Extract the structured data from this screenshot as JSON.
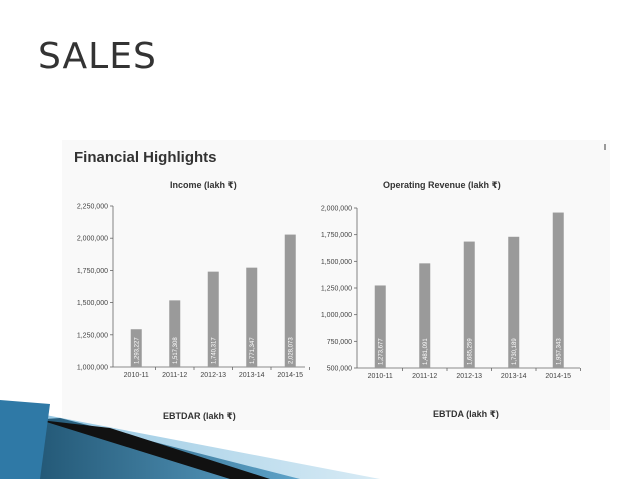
{
  "slide": {
    "title": "SALES"
  },
  "figure": {
    "heading": "Financial Highlights"
  },
  "chart_data": [
    {
      "type": "bar",
      "title": "Income (lakh ₹)",
      "categories": [
        "2010-11",
        "2011-12",
        "2012-13",
        "2013-14",
        "2014-15"
      ],
      "values": [
        1293227,
        1517308,
        1740317,
        1771347,
        2028073
      ],
      "value_labels": [
        "1,293,227",
        "1,517,308",
        "1,740,317",
        "1,771,347",
        "2,028,073"
      ],
      "ylim": [
        1000000,
        2250000
      ],
      "yticks": [
        "1,000,000",
        "1,250,000",
        "1,500,000",
        "1,750,000",
        "2,000,000",
        "2,250,000"
      ],
      "ytick_values": [
        1000000,
        1250000,
        1500000,
        1750000,
        2000000,
        2250000
      ],
      "bar_color": "#9a9a9a",
      "grid": false
    },
    {
      "type": "bar",
      "title": "Operating Revenue (lakh ₹)",
      "categories": [
        "2010-11",
        "2011-12",
        "2012-13",
        "2013-14",
        "2014-15"
      ],
      "values": [
        1273677,
        1481091,
        1685259,
        1730189,
        1957343
      ],
      "value_labels": [
        "1,273,677",
        "1,481,091",
        "1,685,259",
        "1,730,189",
        "1,957,343"
      ],
      "ylim": [
        500000,
        2000000
      ],
      "yticks": [
        "500,000",
        "750,000",
        "1,000,000",
        "1,250,000",
        "1,500,000",
        "1,750,000",
        "2,000,000"
      ],
      "ytick_values": [
        500000,
        750000,
        1000000,
        1250000,
        1500000,
        1750000,
        2000000
      ],
      "bar_color": "#9a9a9a",
      "grid": false
    }
  ],
  "next_titles": {
    "left": "EBTDAR (lakh ₹)",
    "right": "EBTDA (lakh ₹)"
  },
  "colors": {
    "title": "#333333",
    "bar": "#9a9a9a",
    "accent_dark": "#1b4e6b",
    "accent_light": "#8ec3e0"
  }
}
